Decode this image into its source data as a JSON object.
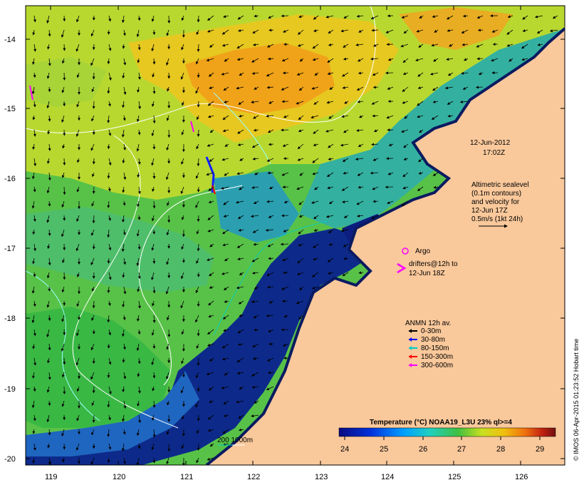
{
  "map": {
    "timestamp_date": "12-Jun-2012",
    "timestamp_time": "17:02Z",
    "altimetry_lines": [
      "Altimetric sealevel",
      "(0.1m contours)",
      "and velocity for",
      "12-Jun 17Z",
      "0.5m/s (1kt 24h)"
    ],
    "argo_label": "Argo",
    "drifters_lines": [
      "drifters@12h to",
      "12-Jun 18Z"
    ],
    "anmn_title": "ANMN 12h av.",
    "anmn_items": [
      {
        "label": "0-30m",
        "color": "#000000"
      },
      {
        "label": "30-80m",
        "color": "#0000ff"
      },
      {
        "label": "80-150m",
        "color": "#00cccc"
      },
      {
        "label": "150-300m",
        "color": "#ff0000"
      },
      {
        "label": "300-600m",
        "color": "#ff00ff"
      }
    ],
    "bathy_label": "200  1000m",
    "colorbar_title": "Temperature (°C) NOAA19_L3U 23% ql>=4",
    "colorbar_ticks": [
      "24",
      "25",
      "26",
      "27",
      "28",
      "29"
    ],
    "x_ticks": [
      "119",
      "120",
      "121",
      "122",
      "123",
      "124",
      "125",
      "126"
    ],
    "y_ticks": [
      "-14",
      "-15",
      "-16",
      "-17",
      "-18",
      "-19",
      "-20"
    ],
    "credit": "© IMOS 06-Apr-2015 01:23:52 Hobart time",
    "colors": {
      "land": "#f9c89b",
      "deep": "#0a1a78",
      "cool": "#2aa3a8",
      "mid": "#3fbf3a",
      "warm": "#d9df2a",
      "hot": "#f0a11a"
    }
  }
}
